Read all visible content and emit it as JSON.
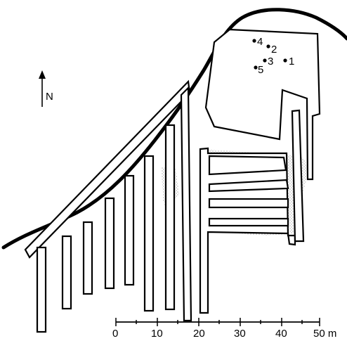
{
  "north": {
    "label": "N"
  },
  "points": [
    {
      "id": "1",
      "label": "1"
    },
    {
      "id": "2",
      "label": "2"
    },
    {
      "id": "3",
      "label": "3"
    },
    {
      "id": "4",
      "label": "4"
    },
    {
      "id": "5",
      "label": "5"
    }
  ],
  "scale": {
    "ticks": [
      "0",
      "10",
      "20",
      "30",
      "40",
      "50 m"
    ]
  },
  "colors": {
    "ink": "#000000",
    "paper": "#ffffff",
    "stipple": "#bdbdbd"
  }
}
